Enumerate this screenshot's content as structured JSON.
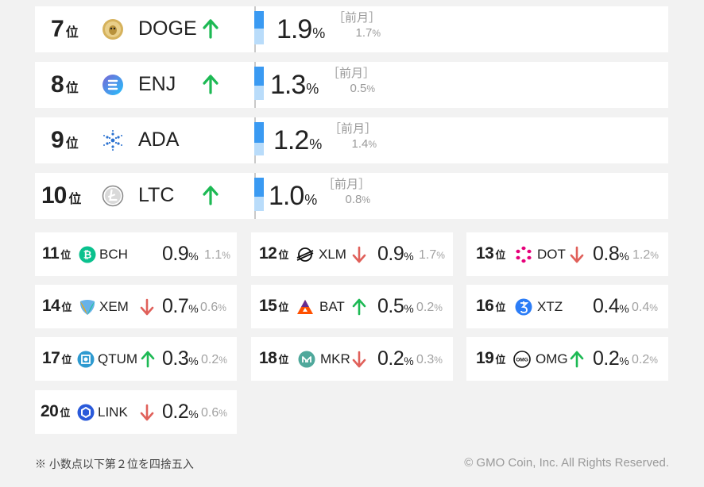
{
  "unit_rank": "位",
  "unit_pct": "%",
  "prev_label": "［前月］",
  "big_rows": [
    {
      "rank": "7",
      "symbol": "DOGE",
      "trend": "up",
      "pct": "1.9",
      "prev": "1.7",
      "cur_value": 1.9,
      "prev_value": 1.7,
      "icon": "doge-icon"
    },
    {
      "rank": "8",
      "symbol": "ENJ",
      "trend": "up",
      "pct": "1.3",
      "prev": "0.5",
      "cur_value": 1.3,
      "prev_value": 0.5,
      "icon": "enj-icon"
    },
    {
      "rank": "9",
      "symbol": "ADA",
      "trend": "none",
      "pct": "1.2",
      "prev": "1.4",
      "cur_value": 1.2,
      "prev_value": 1.4,
      "icon": "ada-icon"
    },
    {
      "rank": "10",
      "symbol": "LTC",
      "trend": "up",
      "pct": "1.0",
      "prev": "0.8",
      "cur_value": 1.0,
      "prev_value": 0.8,
      "icon": "ltc-icon"
    }
  ],
  "cards": [
    {
      "rank": "11",
      "symbol": "BCH",
      "trend": "none",
      "pct": "0.9",
      "prev": "1.1",
      "icon": "bch-icon"
    },
    {
      "rank": "12",
      "symbol": "XLM",
      "trend": "down",
      "pct": "0.9",
      "prev": "1.7",
      "icon": "xlm-icon"
    },
    {
      "rank": "13",
      "symbol": "DOT",
      "trend": "down",
      "pct": "0.8",
      "prev": "1.2",
      "icon": "dot-icon"
    },
    {
      "rank": "14",
      "symbol": "XEM",
      "trend": "down",
      "pct": "0.7",
      "prev": "0.6",
      "icon": "xem-icon"
    },
    {
      "rank": "15",
      "symbol": "BAT",
      "trend": "up",
      "pct": "0.5",
      "prev": "0.2",
      "icon": "bat-icon"
    },
    {
      "rank": "16",
      "symbol": "XTZ",
      "trend": "none",
      "pct": "0.4",
      "prev": "0.4",
      "icon": "xtz-icon"
    },
    {
      "rank": "17",
      "symbol": "QTUM",
      "trend": "up",
      "pct": "0.3",
      "prev": "0.2",
      "icon": "qtum-icon"
    },
    {
      "rank": "18",
      "symbol": "MKR",
      "trend": "down",
      "pct": "0.2",
      "prev": "0.3",
      "icon": "mkr-icon"
    },
    {
      "rank": "19",
      "symbol": "OMG",
      "trend": "up",
      "pct": "0.2",
      "prev": "0.2",
      "icon": "omg-icon"
    },
    {
      "rank": "20",
      "symbol": "LINK",
      "trend": "down",
      "pct": "0.2",
      "prev": "0.6",
      "icon": "link-icon"
    }
  ],
  "colors": {
    "up": "#1db954",
    "down": "#e0605a",
    "bar_current": "#3a9af2",
    "bar_previous": "#b9dcfa"
  },
  "footer": {
    "note": "※ 小数点以下第２位を四捨五入",
    "copyright": "© GMO Coin, Inc. All Rights Reserved."
  }
}
